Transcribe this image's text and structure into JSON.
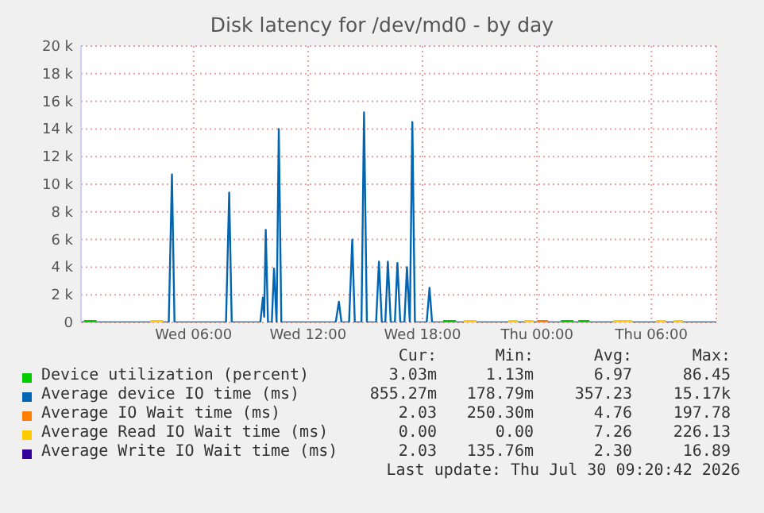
{
  "chart_data": {
    "type": "line",
    "title": "Disk latency for /dev/md0 - by day",
    "xlim": [
      "2026-07-29T00:06",
      "2026-07-30T09:24"
    ],
    "xticks": [
      {
        "value": "2026-07-29T06:00",
        "label": "Wed 06:00"
      },
      {
        "value": "2026-07-29T12:00",
        "label": "Wed 12:00"
      },
      {
        "value": "2026-07-29T18:00",
        "label": "Wed 18:00"
      },
      {
        "value": "2026-07-30T00:00",
        "label": "Thu 00:00"
      },
      {
        "value": "2026-07-30T06:00",
        "label": "Thu 06:00"
      }
    ],
    "ylim": [
      0,
      20000
    ],
    "yticks": [
      0,
      {
        "value": 2000,
        "label": "2 k"
      },
      {
        "value": 4000,
        "label": "4 k"
      },
      {
        "value": 6000,
        "label": "6 k"
      },
      {
        "value": 8000,
        "label": "8 k"
      },
      {
        "value": 10000,
        "label": "10 k"
      },
      {
        "value": 12000,
        "label": "12 k"
      },
      {
        "value": 14000,
        "label": "14 k"
      },
      {
        "value": 16000,
        "label": "16 k"
      },
      {
        "value": 18000,
        "label": "18 k"
      },
      {
        "value": 20000,
        "label": "20 k"
      }
    ],
    "grid": true,
    "legend": "bottom",
    "marker": "none",
    "line_style": "solid",
    "series": [
      {
        "name": "Device utilization (percent)",
        "color": "#00cc00",
        "x": [
          "2026-07-29T00:15",
          "2026-07-29T00:55",
          "2026-07-29T01:00",
          "2026-07-29T19:05",
          "2026-07-29T19:45",
          "2026-07-29T19:50",
          "2026-07-30T01:15",
          "2026-07-30T01:55",
          "2026-07-30T02:00",
          "2026-07-30T02:10",
          "2026-07-30T02:45"
        ],
        "values": [
          0,
          0,
          null,
          0,
          0,
          null,
          0,
          0,
          null,
          0,
          0
        ]
      },
      {
        "name": "Average device IO time (ms)",
        "color": "#0066b3",
        "x": [
          "2026-07-29T00:06",
          "2026-07-29T04:18",
          "2026-07-29T04:42",
          "2026-07-29T04:52",
          "2026-07-29T05:00",
          "2026-07-29T07:42",
          "2026-07-29T07:52",
          "2026-07-29T08:00",
          "2026-07-29T09:30",
          "2026-07-29T09:38",
          "2026-07-29T09:42",
          "2026-07-29T09:47",
          "2026-07-29T09:54",
          "2026-07-29T10:06",
          "2026-07-29T10:13",
          "2026-07-29T10:21",
          "2026-07-29T10:28",
          "2026-07-29T10:36",
          "2026-07-29T13:27",
          "2026-07-29T13:37",
          "2026-07-29T13:45",
          "2026-07-29T14:09",
          "2026-07-29T14:19",
          "2026-07-29T14:27",
          "2026-07-29T14:48",
          "2026-07-29T14:56",
          "2026-07-29T15:05",
          "2026-07-29T15:34",
          "2026-07-29T15:43",
          "2026-07-29T15:52",
          "2026-07-29T16:03",
          "2026-07-29T16:11",
          "2026-07-29T16:20",
          "2026-07-29T16:33",
          "2026-07-29T16:41",
          "2026-07-29T16:50",
          "2026-07-29T17:03",
          "2026-07-29T17:11",
          "2026-07-29T17:20",
          "2026-07-29T17:28",
          "2026-07-29T17:36",
          "2026-07-29T18:13",
          "2026-07-29T18:22",
          "2026-07-29T18:30",
          "2026-07-30T09:24"
        ],
        "values": [
          0,
          0,
          0,
          10700,
          0,
          0,
          9400,
          0,
          0,
          1800,
          400,
          6700,
          0,
          0,
          3900,
          0,
          14000,
          0,
          0,
          1500,
          0,
          0,
          6000,
          0,
          0,
          15200,
          0,
          0,
          4400,
          0,
          0,
          4400,
          0,
          0,
          4300,
          0,
          0,
          4000,
          0,
          14500,
          0,
          0,
          2500,
          0,
          0
        ]
      },
      {
        "name": "Average IO Wait time (ms)",
        "color": "#ff8000",
        "x": [
          "2026-07-30T00:00",
          "2026-07-30T00:35"
        ],
        "values": [
          0,
          0
        ]
      },
      {
        "name": "Average Read IO Wait time (ms)",
        "color": "#ffcc00",
        "x": [
          "2026-07-29T03:45",
          "2026-07-29T04:25",
          "2026-07-29T04:30",
          "2026-07-29T20:10",
          "2026-07-29T20:50",
          "2026-07-29T21:00",
          "2026-07-29T22:30",
          "2026-07-29T23:00",
          "2026-07-29T23:10",
          "2026-07-29T23:20",
          "2026-07-29T23:50",
          "2026-07-30T03:00",
          "2026-07-30T04:00",
          "2026-07-30T05:00",
          "2026-07-30T05:10",
          "2026-07-30T06:15",
          "2026-07-30T06:45",
          "2026-07-30T07:00",
          "2026-07-30T07:10",
          "2026-07-30T07:40"
        ],
        "values": [
          0,
          0,
          null,
          0,
          0,
          null,
          0,
          0,
          null,
          0,
          0,
          null,
          0,
          0,
          null,
          0,
          0,
          null,
          0,
          0
        ]
      },
      {
        "name": "Average Write IO Wait time (ms)",
        "color": "#330099"
      }
    ],
    "annotations": [
      "Cur:",
      "Min:",
      "Avg:",
      "Max:",
      "3.03m",
      "1.13m",
      "6.97",
      "86.45",
      "855.27m",
      "178.79m",
      "357.23",
      "15.17k",
      "2.03",
      "250.30m",
      "4.76",
      "197.78",
      "0.00",
      "0.00",
      "7.26",
      "226.13",
      "2.03",
      "135.76m",
      "2.30",
      "16.89",
      "Last update: Thu Jul 30 09:20:42 2026"
    ]
  }
}
